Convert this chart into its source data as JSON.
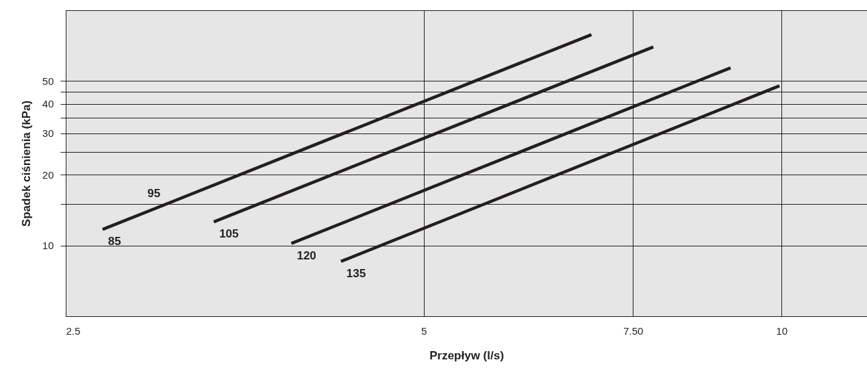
{
  "chart_data": {
    "type": "line",
    "xlabel": "Przepływ (l/s)",
    "ylabel": "Spadek ciśnienia (kPa)",
    "log": "xy",
    "grid": true,
    "line_style": "solid",
    "marker": "none",
    "xlim": [
      2.5,
      11.8
    ],
    "ylim": [
      5,
      100
    ],
    "xticks": [
      2.5,
      5,
      {
        "value": 7.5,
        "label": "7.50"
      },
      10
    ],
    "yticks": [
      10,
      {
        "value": 15,
        "label": null
      },
      20,
      {
        "value": 25,
        "label": null
      },
      30,
      {
        "value": 35,
        "label": null
      },
      40,
      {
        "value": 45,
        "label": null
      },
      50
    ],
    "series": [
      {
        "color": "#231f20",
        "x": [
          2.685,
          6.92
        ],
        "values": [
          11.7,
          78.8
        ]
      },
      {
        "color": "#231f20",
        "x": [
          3.33,
          7.8
        ],
        "values": [
          12.6,
          69.8
        ]
      },
      {
        "color": "#231f20",
        "x": [
          3.87,
          9.06
        ],
        "values": [
          10.2,
          56.9
        ]
      },
      {
        "color": "#231f20",
        "x": [
          4.26,
          9.96
        ],
        "values": [
          8.55,
          47.7
        ]
      }
    ],
    "annotations": [
      {
        "text": "85",
        "x": 2.685,
        "y": 11.7
      },
      {
        "text": "95",
        "x": 2.96,
        "y": 14.3
      },
      {
        "text": "105",
        "x": 3.33,
        "y": 12.6
      },
      {
        "text": "120",
        "x": 3.87,
        "y": 10.2
      },
      {
        "text": "135",
        "x": 4.26,
        "y": 8.55
      }
    ]
  }
}
